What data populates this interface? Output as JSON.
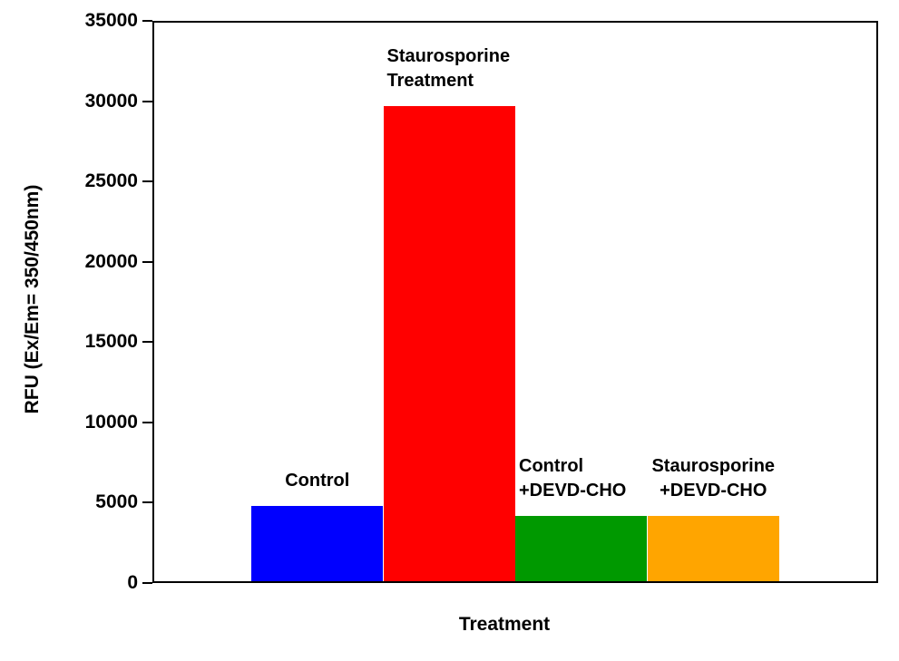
{
  "chart_data": {
    "type": "bar",
    "title": "",
    "xlabel": "Treatment",
    "ylabel": "RFU (Ex/Em= 350/450nm)",
    "ylim": [
      0,
      35000
    ],
    "ytick_step": 5000,
    "yticks": [
      0,
      5000,
      10000,
      15000,
      20000,
      25000,
      30000,
      35000
    ],
    "grid": false,
    "legend": "none",
    "plot_border": true,
    "categories": [
      "Control",
      "Staurosporine Treatment",
      "Control +DEVD-CHO",
      "Staurosporine +DEVD-CHO"
    ],
    "values": [
      4800,
      29700,
      4200,
      4200
    ],
    "bar_colors": [
      "#0000ff",
      "#ff0000",
      "#009900",
      "#ffa500"
    ],
    "bar_labels": [
      {
        "lines": [
          "Control"
        ],
        "align": "center"
      },
      {
        "lines": [
          "Staurosporine",
          "Treatment"
        ],
        "align": "left"
      },
      {
        "lines": [
          "Control",
          "+DEVD-CHO"
        ],
        "align": "left"
      },
      {
        "lines": [
          "Staurosporine",
          "+DEVD-CHO"
        ],
        "align": "center"
      }
    ],
    "axis_color": "#000000",
    "label_color": "#000000"
  }
}
